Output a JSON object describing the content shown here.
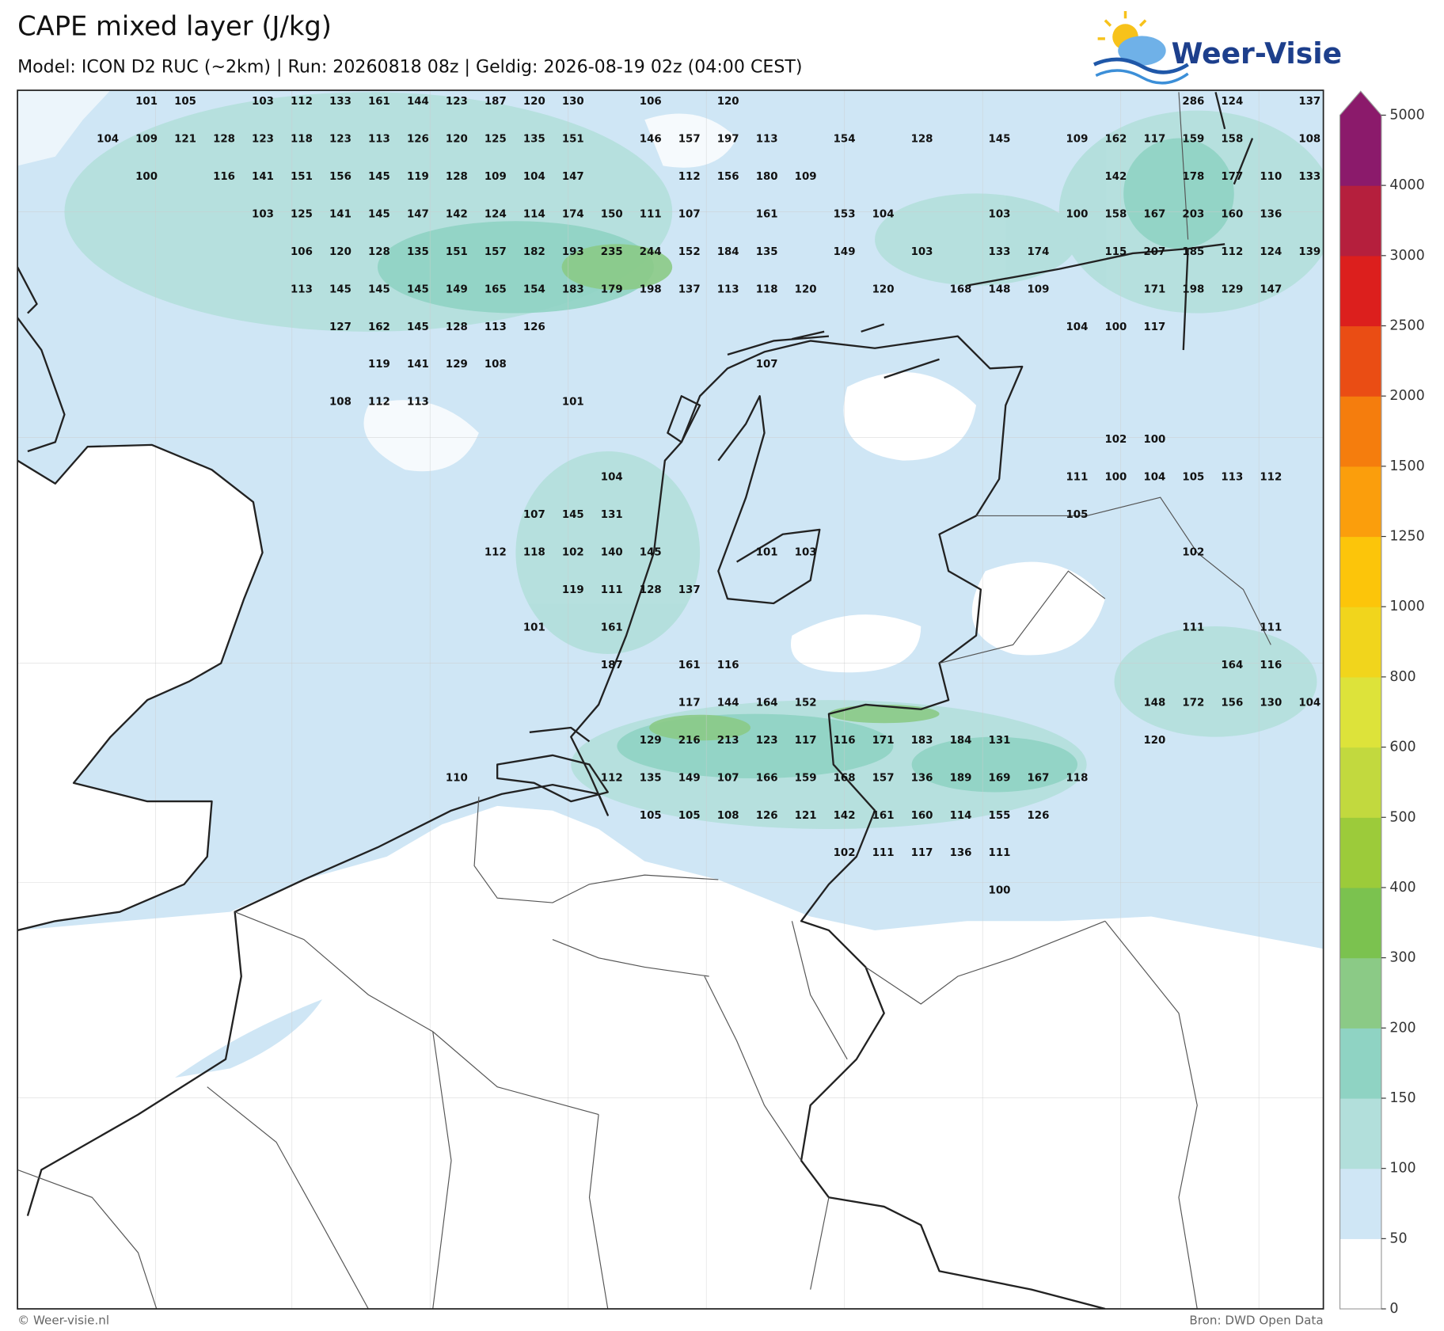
{
  "header": {
    "title": "CAPE mixed layer (J/kg)",
    "subtitle": "Model: ICON D2 RUC (~2km)  |  Run: 20260818 08z  |  Geldig: 2026-08-19 02z (04:00 CEST)",
    "logo": "Weer-Visie"
  },
  "map": {
    "labels": [
      [
        null,
        101,
        105,
        null,
        103,
        112,
        133,
        161,
        144,
        123,
        187,
        120,
        130,
        null,
        106,
        null,
        120,
        null,
        null,
        null,
        null,
        null,
        null,
        null,
        null,
        null,
        null,
        null,
        286,
        124,
        null,
        137
      ],
      [
        104,
        109,
        121,
        128,
        123,
        118,
        123,
        113,
        126,
        120,
        125,
        135,
        151,
        null,
        146,
        157,
        197,
        113,
        null,
        154,
        null,
        128,
        null,
        145,
        null,
        109,
        162,
        117,
        159,
        158,
        null,
        108
      ],
      [
        null,
        100,
        null,
        116,
        141,
        151,
        156,
        145,
        119,
        128,
        109,
        104,
        147,
        null,
        null,
        112,
        156,
        180,
        109,
        null,
        null,
        null,
        null,
        null,
        null,
        null,
        142,
        null,
        178,
        177,
        110,
        133
      ],
      [
        null,
        null,
        null,
        null,
        103,
        125,
        141,
        145,
        147,
        142,
        124,
        114,
        174,
        150,
        111,
        107,
        null,
        161,
        null,
        153,
        104,
        null,
        null,
        103,
        null,
        100,
        158,
        167,
        203,
        160,
        136,
        null
      ],
      [
        null,
        null,
        null,
        null,
        null,
        106,
        120,
        128,
        135,
        151,
        157,
        182,
        193,
        235,
        244,
        152,
        184,
        135,
        null,
        149,
        null,
        103,
        null,
        133,
        174,
        null,
        115,
        207,
        185,
        112,
        124,
        139
      ],
      [
        null,
        null,
        null,
        null,
        null,
        113,
        145,
        145,
        145,
        149,
        165,
        154,
        183,
        179,
        198,
        137,
        113,
        118,
        120,
        null,
        120,
        null,
        168,
        148,
        109,
        null,
        null,
        171,
        198,
        129,
        147,
        null
      ],
      [
        null,
        null,
        null,
        null,
        null,
        null,
        127,
        162,
        145,
        128,
        113,
        126,
        null,
        null,
        null,
        null,
        null,
        null,
        null,
        null,
        null,
        null,
        null,
        null,
        null,
        104,
        100,
        117,
        null,
        null,
        null,
        null
      ],
      [
        null,
        null,
        null,
        null,
        null,
        null,
        null,
        119,
        141,
        129,
        108,
        null,
        null,
        null,
        null,
        null,
        null,
        107,
        null,
        null,
        null,
        null,
        null,
        null,
        null,
        null,
        null,
        null,
        null,
        null,
        null,
        null
      ],
      [
        null,
        null,
        null,
        null,
        null,
        null,
        108,
        112,
        113,
        null,
        null,
        null,
        101,
        null,
        null,
        null,
        null,
        null,
        null,
        null,
        null,
        null,
        null,
        null,
        null,
        null,
        null,
        null,
        null,
        null,
        null,
        null
      ],
      [
        null,
        null,
        null,
        null,
        null,
        null,
        null,
        null,
        null,
        null,
        null,
        null,
        null,
        null,
        null,
        null,
        null,
        null,
        null,
        null,
        null,
        null,
        null,
        null,
        null,
        null,
        102,
        100,
        null,
        null,
        null,
        null
      ],
      [
        null,
        null,
        null,
        null,
        null,
        null,
        null,
        null,
        null,
        null,
        null,
        null,
        null,
        104,
        null,
        null,
        null,
        null,
        null,
        null,
        null,
        null,
        null,
        null,
        null,
        111,
        100,
        104,
        105,
        113,
        112,
        null
      ],
      [
        null,
        null,
        null,
        null,
        null,
        null,
        null,
        null,
        null,
        null,
        null,
        107,
        145,
        131,
        null,
        null,
        null,
        null,
        null,
        null,
        null,
        null,
        null,
        null,
        null,
        105,
        null,
        null,
        null,
        null,
        null,
        null
      ],
      [
        null,
        null,
        null,
        null,
        null,
        null,
        null,
        null,
        null,
        null,
        112,
        118,
        102,
        140,
        145,
        null,
        null,
        101,
        103,
        null,
        null,
        null,
        null,
        null,
        null,
        null,
        null,
        null,
        102,
        null,
        null,
        null
      ],
      [
        null,
        null,
        null,
        null,
        null,
        null,
        null,
        null,
        null,
        null,
        null,
        null,
        119,
        111,
        128,
        137,
        null,
        null,
        null,
        null,
        null,
        null,
        null,
        null,
        null,
        null,
        null,
        null,
        null,
        null,
        null,
        null
      ],
      [
        null,
        null,
        null,
        null,
        null,
        null,
        null,
        null,
        null,
        null,
        null,
        101,
        null,
        161,
        null,
        null,
        null,
        null,
        null,
        null,
        null,
        null,
        null,
        null,
        null,
        null,
        null,
        null,
        111,
        null,
        111,
        null
      ],
      [
        null,
        null,
        null,
        null,
        null,
        null,
        null,
        null,
        null,
        null,
        null,
        null,
        null,
        187,
        null,
        161,
        116,
        null,
        null,
        null,
        null,
        null,
        null,
        null,
        null,
        null,
        null,
        null,
        null,
        164,
        116,
        null
      ],
      [
        null,
        null,
        null,
        null,
        null,
        null,
        null,
        null,
        null,
        null,
        null,
        null,
        null,
        null,
        null,
        117,
        144,
        164,
        152,
        null,
        null,
        null,
        null,
        null,
        null,
        null,
        null,
        148,
        172,
        156,
        130,
        104
      ],
      [
        null,
        null,
        null,
        null,
        null,
        null,
        null,
        null,
        null,
        null,
        null,
        null,
        null,
        null,
        129,
        216,
        213,
        123,
        117,
        116,
        171,
        183,
        184,
        131,
        null,
        null,
        null,
        120,
        null,
        null,
        null,
        null
      ],
      [
        null,
        null,
        null,
        null,
        null,
        null,
        null,
        null,
        null,
        110,
        null,
        null,
        null,
        112,
        135,
        149,
        107,
        166,
        159,
        168,
        157,
        136,
        189,
        169,
        167,
        118,
        null,
        null,
        null,
        null,
        null,
        null
      ],
      [
        null,
        null,
        null,
        null,
        null,
        null,
        null,
        null,
        null,
        null,
        null,
        null,
        null,
        null,
        105,
        105,
        108,
        126,
        121,
        142,
        161,
        160,
        114,
        155,
        126,
        null,
        null,
        null,
        null,
        null,
        null,
        null
      ],
      [
        null,
        null,
        null,
        null,
        null,
        null,
        null,
        null,
        null,
        null,
        null,
        null,
        null,
        null,
        null,
        null,
        null,
        null,
        null,
        102,
        111,
        117,
        136,
        111,
        null,
        null,
        null,
        null,
        null,
        null,
        null,
        null
      ],
      [
        null,
        null,
        null,
        null,
        null,
        null,
        null,
        null,
        null,
        null,
        null,
        null,
        null,
        null,
        null,
        null,
        null,
        null,
        null,
        null,
        null,
        null,
        null,
        100,
        null,
        null,
        null,
        null,
        null,
        null,
        null,
        null
      ]
    ]
  },
  "colorbar": {
    "ticks": [
      0,
      50,
      100,
      150,
      200,
      300,
      400,
      500,
      600,
      800,
      1000,
      1250,
      1500,
      2000,
      2500,
      3000,
      4000,
      5000
    ],
    "colors": [
      "#ffffff",
      "#cfe6f5",
      "#b2dfdb",
      "#8fd3c3",
      "#8bca86",
      "#7bc24f",
      "#9ccb3a",
      "#c2d93e",
      "#dde33a",
      "#f1d51c",
      "#fcc50a",
      "#fb9e0c",
      "#f57d0d",
      "#ea4d14",
      "#dc1f1d",
      "#b51f3d",
      "#8b1a6b"
    ]
  },
  "footer": {
    "left": "© Weer-visie.nl",
    "right": "Bron: DWD Open Data"
  }
}
